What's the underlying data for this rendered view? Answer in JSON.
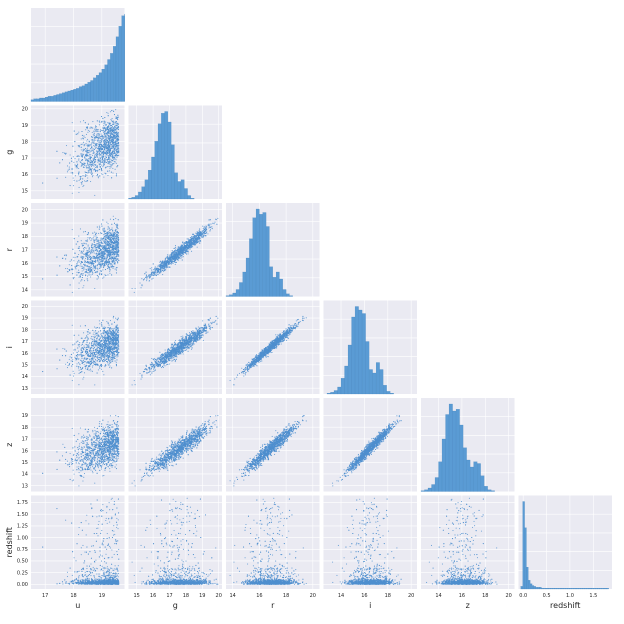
{
  "chart_data": {
    "type": "pairplot",
    "variables": [
      "u",
      "g",
      "r",
      "i",
      "z",
      "redshift"
    ],
    "corner": true,
    "grid": true,
    "background": "#eaeaf2",
    "colors": {
      "histogram": "#5a9bd4",
      "point": "#4f8fcf",
      "point_edge": "#ffffff"
    },
    "ranges": {
      "u": [
        16.5,
        19.8
      ],
      "g": [
        14.5,
        20.2
      ],
      "r": [
        13.5,
        20.5
      ],
      "i": [
        12.5,
        20.5
      ],
      "z": [
        12.5,
        20.5
      ],
      "redshift": [
        -0.1,
        1.9
      ]
    },
    "ticks": {
      "u": [
        17,
        18,
        19
      ],
      "g": [
        15,
        16,
        17,
        18,
        19,
        20
      ],
      "r": [
        14,
        16,
        18,
        20
      ],
      "i": [
        14,
        16,
        18,
        20
      ],
      "z": [
        14,
        16,
        18,
        20
      ],
      "redshift": [
        0.0,
        0.5,
        1.0,
        1.5
      ]
    },
    "ytick_labels": {
      "g": [
        "15",
        "16",
        "17",
        "18",
        "19",
        "20"
      ],
      "r": [
        "14",
        "15",
        "16",
        "17",
        "18",
        "19",
        "20"
      ],
      "i": [
        "13",
        "14",
        "15",
        "16",
        "17",
        "18",
        "19",
        "20"
      ],
      "z": [
        "13",
        "14",
        "15",
        "16",
        "17",
        "18",
        "19"
      ],
      "redshift": [
        "0.00",
        "0.25",
        "0.50",
        "0.75",
        "1.00",
        "1.25",
        "1.50",
        "1.75"
      ]
    },
    "ytick_values": {
      "g": [
        15,
        16,
        17,
        18,
        19,
        20
      ],
      "r": [
        14,
        15,
        16,
        17,
        18,
        19,
        20
      ],
      "i": [
        13,
        14,
        15,
        16,
        17,
        18,
        19,
        20
      ],
      "z": [
        13,
        14,
        15,
        16,
        17,
        18,
        19
      ],
      "redshift": [
        0.0,
        0.25,
        0.5,
        0.75,
        1.0,
        1.25,
        1.5,
        1.75
      ]
    },
    "xtick_labels": {
      "u": [
        "17",
        "18",
        "19"
      ],
      "g": [
        "15",
        "16",
        "17",
        "18",
        "19",
        "20"
      ],
      "r": [
        "14",
        "16",
        "18",
        "20"
      ],
      "i": [
        "14",
        "16",
        "18",
        "20"
      ],
      "z": [
        "14",
        "16",
        "18",
        "20"
      ],
      "redshift": [
        "0.0",
        "0.5",
        "1.0",
        "1.5"
      ]
    },
    "histograms": {
      "u": {
        "bins_start": 16.5,
        "bin_width": 0.1,
        "counts": [
          2,
          3,
          3,
          4,
          4,
          5,
          6,
          6,
          7,
          8,
          9,
          10,
          11,
          12,
          13,
          14,
          15,
          17,
          18,
          20,
          22,
          24,
          27,
          30,
          33,
          37,
          42,
          48,
          55,
          63,
          74,
          86,
          98,
          100
        ]
      },
      "g": {
        "bins_start": 14.5,
        "bin_width": 0.2,
        "counts": [
          1,
          2,
          4,
          8,
          14,
          22,
          33,
          48,
          66,
          86,
          98,
          100,
          88,
          62,
          30,
          20,
          22,
          12,
          4,
          1,
          0,
          0,
          0,
          0,
          0,
          0
        ]
      },
      "r": {
        "bins_start": 13.5,
        "bin_width": 0.25,
        "counts": [
          1,
          2,
          4,
          8,
          16,
          28,
          44,
          66,
          90,
          100,
          94,
          96,
          80,
          34,
          22,
          28,
          20,
          8,
          3,
          1,
          0,
          0,
          0,
          0,
          0,
          0,
          0,
          0
        ]
      },
      "i": {
        "bins_start": 12.5,
        "bin_width": 0.3,
        "counts": [
          0,
          1,
          2,
          4,
          8,
          18,
          32,
          56,
          88,
          100,
          96,
          92,
          60,
          28,
          24,
          36,
          28,
          10,
          3,
          1,
          0,
          0,
          0,
          0,
          0,
          0,
          0
        ]
      },
      "z": {
        "bins_start": 12.5,
        "bin_width": 0.3,
        "counts": [
          1,
          2,
          4,
          8,
          16,
          34,
          60,
          88,
          100,
          92,
          94,
          76,
          50,
          36,
          28,
          34,
          32,
          18,
          6,
          2,
          1,
          0,
          0,
          0,
          0,
          0,
          0
        ]
      },
      "redshift": {
        "bins_start": -0.05,
        "bin_width": 0.04,
        "counts": [
          3,
          100,
          70,
          25,
          10,
          6,
          4,
          3,
          2,
          2,
          2,
          1,
          1,
          1,
          1,
          1,
          1,
          1,
          1,
          1,
          1,
          1,
          1,
          1,
          1,
          1,
          1,
          1,
          1,
          1,
          1,
          1,
          1,
          1,
          1,
          1,
          1,
          1,
          1,
          1,
          1,
          1,
          1,
          1,
          1,
          1,
          1
        ]
      }
    }
  }
}
